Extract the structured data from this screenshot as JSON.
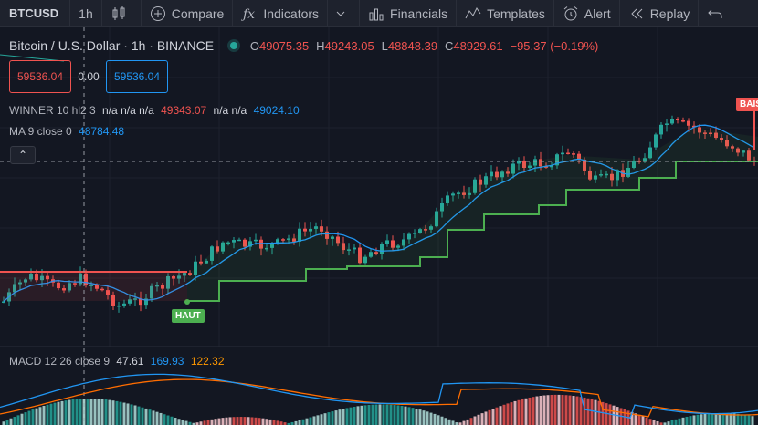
{
  "toolbar": {
    "symbol": "BTCUSD",
    "interval": "1h",
    "compare": "Compare",
    "indicators": "Indicators",
    "financials": "Financials",
    "templates": "Templates",
    "alert": "Alert",
    "replay": "Replay"
  },
  "header": {
    "title": "Bitcoin / U.S. Dollar · 1h · BINANCE",
    "o_label": "O",
    "o_value": "49075.35",
    "h_label": "H",
    "h_value": "49243.05",
    "l_label": "L",
    "l_value": "48848.39",
    "c_label": "C",
    "c_value": "48929.61",
    "change": "−95.37 (−0.19%)"
  },
  "trade": {
    "sell_price": "59536.04",
    "spread": "0.00",
    "buy_price": "59536.04"
  },
  "indicators": {
    "winner_name": "WINNER 10 hl2 3",
    "winner_na": "n/a n/a n/a",
    "winner_value1": "49343.07",
    "winner_na2": "n/a n/a",
    "winner_value2": "49024.10",
    "ma_name": "MA 9 close 0",
    "ma_value": "48784.48",
    "collapse_arrow": "⌃"
  },
  "macd": {
    "name": "MACD 12 26 close 9",
    "hist": "47.61",
    "macd": "169.93",
    "signal": "122.32"
  },
  "tags": {
    "haut": "HAUT",
    "baisse": "BAISSE"
  },
  "colors": {
    "up": "#26a69a",
    "down": "#ef5350",
    "ma": "#2196f3",
    "stop": "#4caf50",
    "macd_line": "#2196f3",
    "signal_line": "#ff6d00"
  }
}
